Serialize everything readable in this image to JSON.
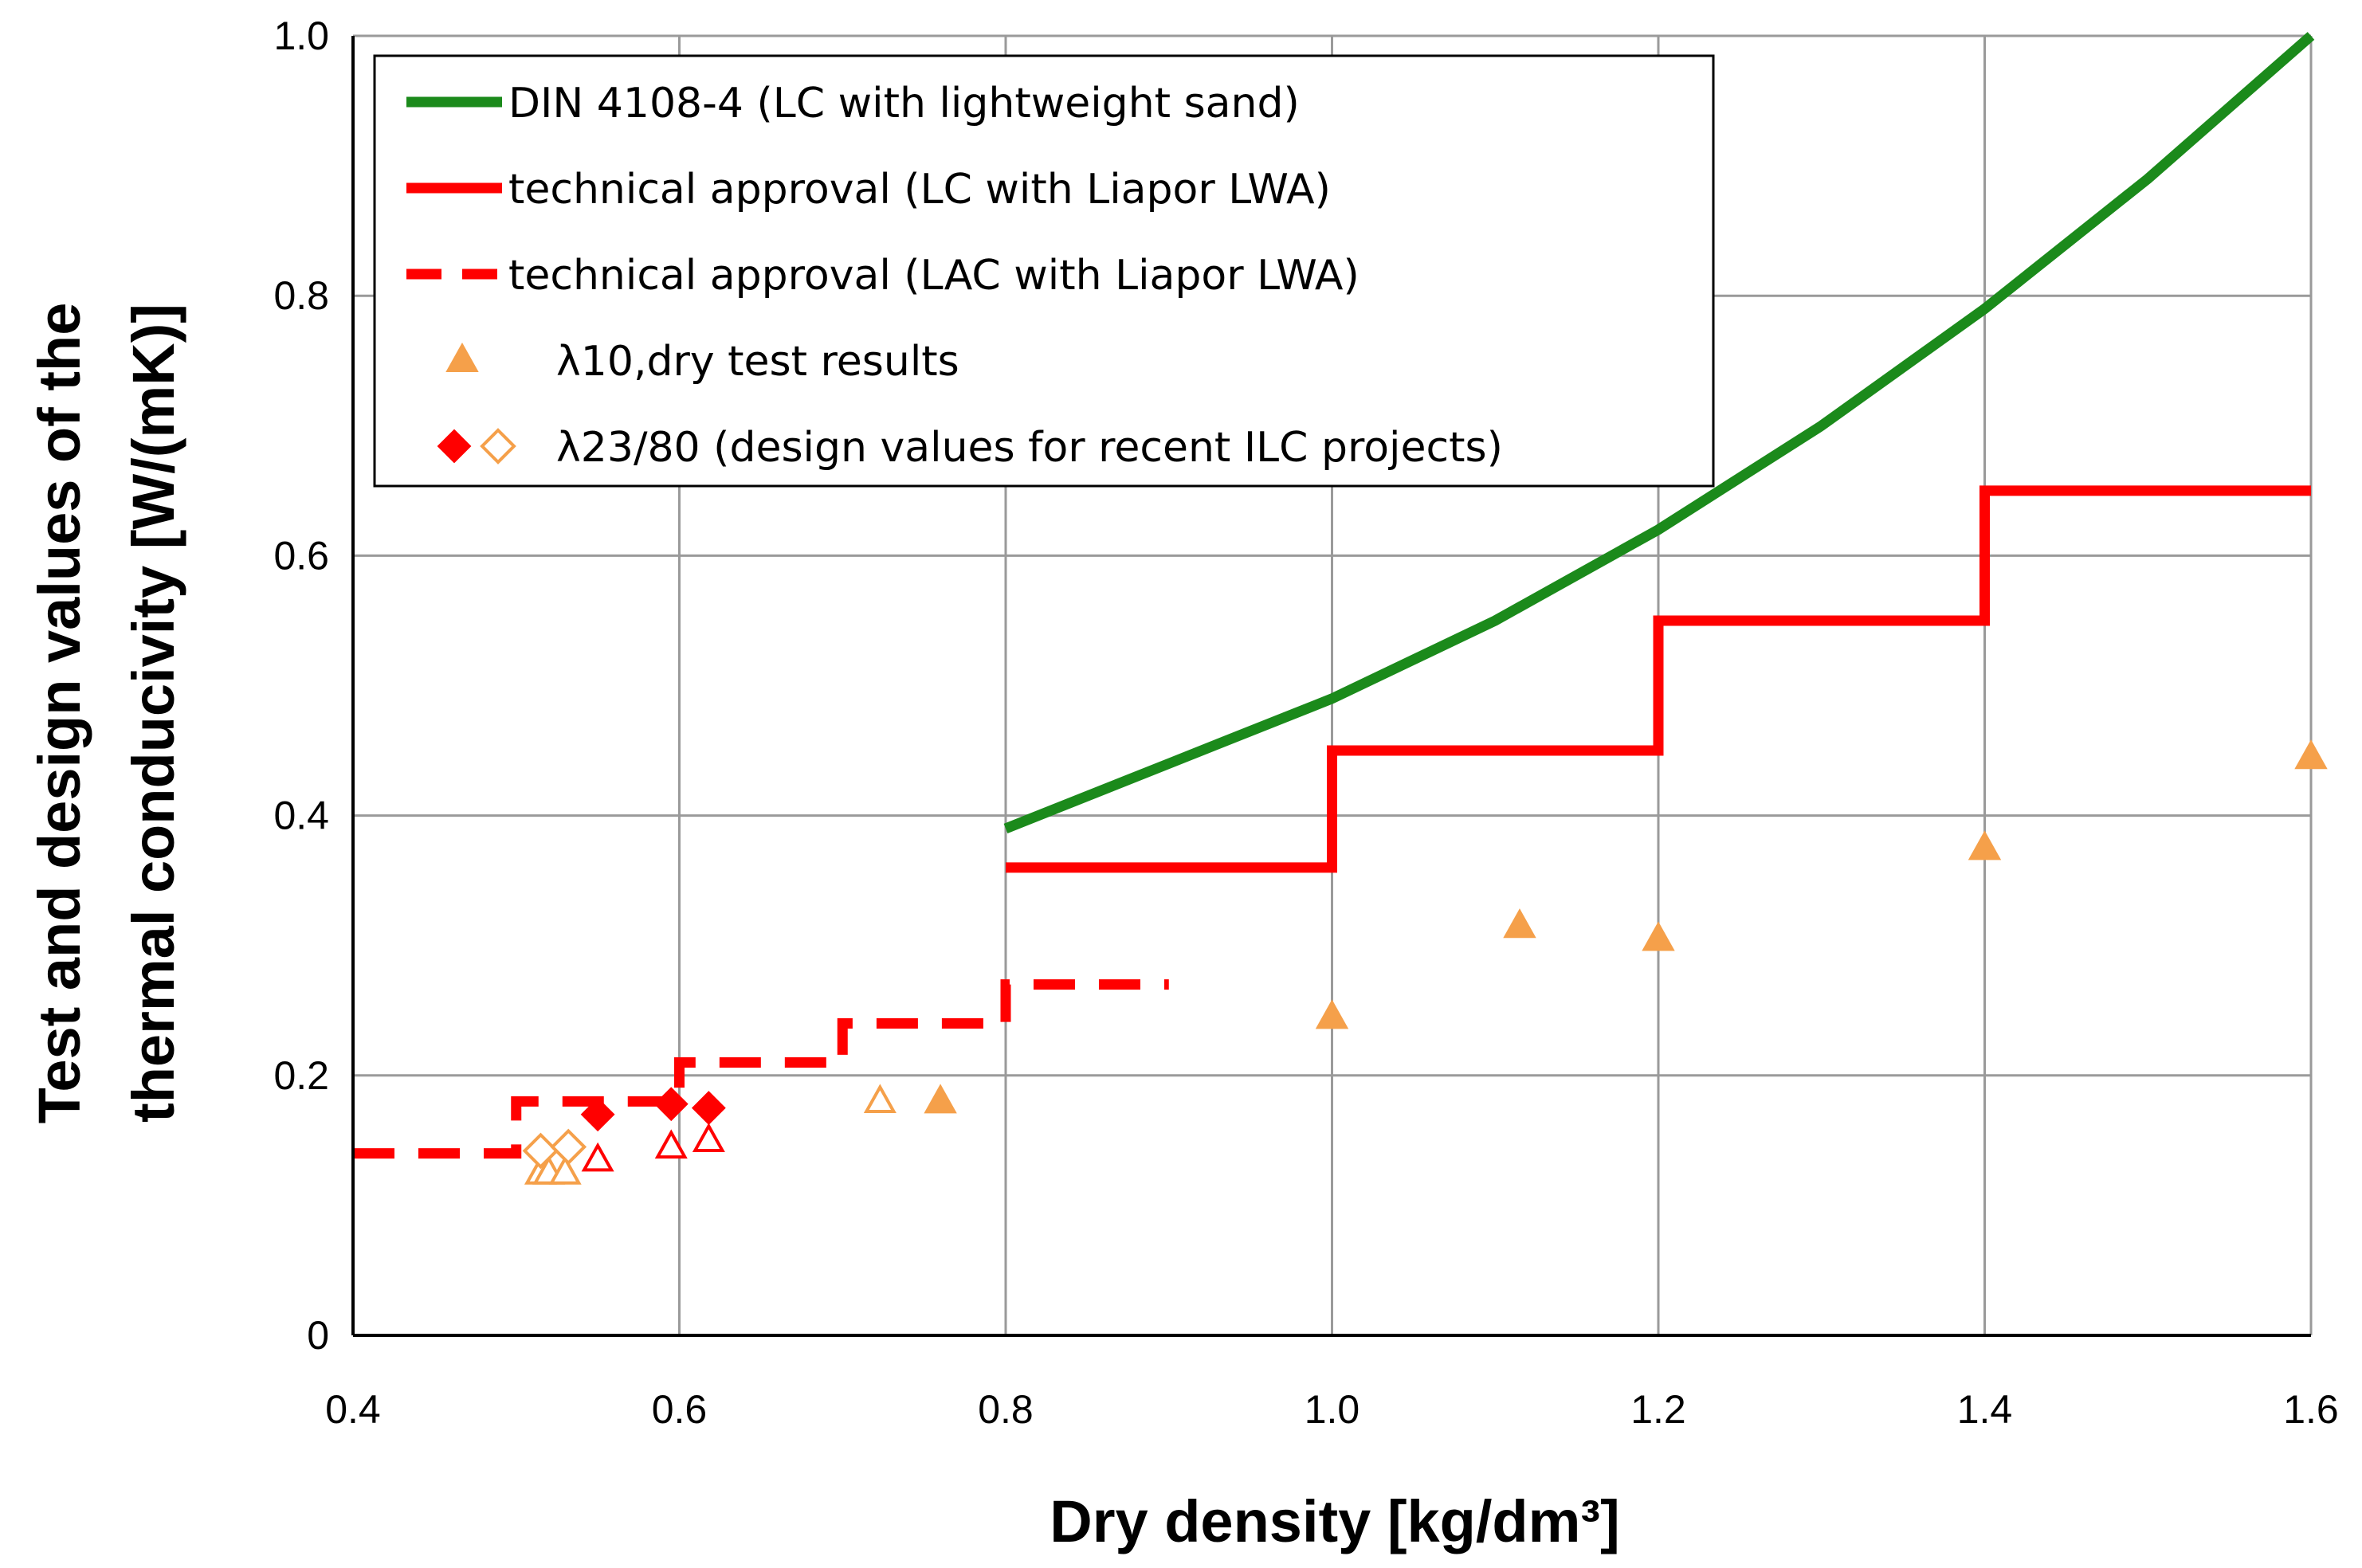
{
  "chart_data": {
    "type": "line",
    "xlabel": "Dry density [kg/dm³]",
    "ylabel_line1": "Test and design values of the",
    "ylabel_line2": "thermal conducivity [W/(mK)]",
    "xlim": [
      0.4,
      1.6
    ],
    "ylim": [
      0,
      1.0
    ],
    "grid": true,
    "legend_position": "top-left",
    "x_ticks": [
      {
        "value": 0.4,
        "label": "0.4"
      },
      {
        "value": 0.6,
        "label": "0.6"
      },
      {
        "value": 0.8,
        "label": "0.8"
      },
      {
        "value": 1.0,
        "label": "1.0"
      },
      {
        "value": 1.2,
        "label": "1.2"
      },
      {
        "value": 1.4,
        "label": "1.4"
      },
      {
        "value": 1.6,
        "label": "1.6"
      }
    ],
    "y_ticks": [
      {
        "value": 0,
        "label": "0"
      },
      {
        "value": 0.2,
        "label": "0.2"
      },
      {
        "value": 0.4,
        "label": "0.4"
      },
      {
        "value": 0.6,
        "label": "0.6"
      },
      {
        "value": 0.8,
        "label": "0.8"
      },
      {
        "value": 1.0,
        "label": "1.0"
      }
    ],
    "series": [
      {
        "name": "DIN 4108-4 (LC with lightweight sand)",
        "style": "solid",
        "color": "#1b8a1b",
        "x": [
          0.8,
          0.9,
          1.0,
          1.1,
          1.2,
          1.3,
          1.4,
          1.5,
          1.6
        ],
        "y": [
          0.39,
          0.44,
          0.49,
          0.55,
          0.62,
          0.7,
          0.79,
          0.89,
          1.0
        ]
      },
      {
        "name": "technical approval (LC with Liapor LWA)",
        "style": "solid",
        "color": "#ff0000",
        "x": [
          0.8,
          1.0,
          1.0,
          1.2,
          1.2,
          1.4,
          1.4,
          1.6
        ],
        "y": [
          0.36,
          0.36,
          0.45,
          0.45,
          0.55,
          0.55,
          0.65,
          0.65
        ]
      },
      {
        "name": "technical approval (LAC with Liapor LWA)",
        "style": "dashed",
        "color": "#ff0000",
        "x": [
          0.4,
          0.5,
          0.5,
          0.6,
          0.6,
          0.7,
          0.7,
          0.8,
          0.8,
          0.9
        ],
        "y": [
          0.14,
          0.14,
          0.18,
          0.18,
          0.21,
          0.21,
          0.24,
          0.24,
          0.27,
          0.27
        ]
      }
    ],
    "scatter": [
      {
        "name": "λ10,dry test results",
        "marker": "triangle-filled",
        "color": "#f5a04a",
        "points": [
          [
            0.76,
            0.18
          ],
          [
            1.0,
            0.245
          ],
          [
            1.115,
            0.315
          ],
          [
            1.2,
            0.305
          ],
          [
            1.4,
            0.375
          ],
          [
            1.6,
            0.445
          ]
        ]
      },
      {
        "name": "λ10,dry test results (open, orange)",
        "marker": "triangle-open",
        "color": "#f5a04a",
        "points": [
          [
            0.515,
            0.125
          ],
          [
            0.52,
            0.125
          ],
          [
            0.53,
            0.125
          ],
          [
            0.723,
            0.18
          ]
        ]
      },
      {
        "name": "λ10,dry test results (open, red)",
        "marker": "triangle-open",
        "color": "#ff0000",
        "points": [
          [
            0.55,
            0.135
          ],
          [
            0.595,
            0.145
          ],
          [
            0.618,
            0.15
          ]
        ]
      },
      {
        "name": "λ23/80 (design values for recent ILC projects)",
        "marker": "diamond-filled",
        "color": "#ff0000",
        "points": [
          [
            0.55,
            0.17
          ],
          [
            0.595,
            0.178
          ],
          [
            0.618,
            0.175
          ]
        ]
      },
      {
        "name": "λ23/80 (design values, open)",
        "marker": "diamond-open",
        "color": "#f5a04a",
        "points": [
          [
            0.515,
            0.142
          ],
          [
            0.532,
            0.145
          ]
        ]
      }
    ],
    "legend": [
      {
        "label": "DIN 4108-4 (LC with lightweight sand)",
        "symbol": "line-solid",
        "color": "#1b8a1b"
      },
      {
        "label": "technical approval (LC with Liapor LWA)",
        "symbol": "line-solid",
        "color": "#ff0000"
      },
      {
        "label": "technical approval (LAC with Liapor LWA)",
        "symbol": "line-dashed",
        "color": "#ff0000"
      },
      {
        "label": "λ10,dry test results",
        "symbol": "triangle-filled",
        "color": "#f5a04a"
      },
      {
        "label": "λ23/80 (design values for recent ILC projects)",
        "symbol": "diamond-pair",
        "color": "#ff0000",
        "color2": "#f5a04a"
      }
    ]
  }
}
